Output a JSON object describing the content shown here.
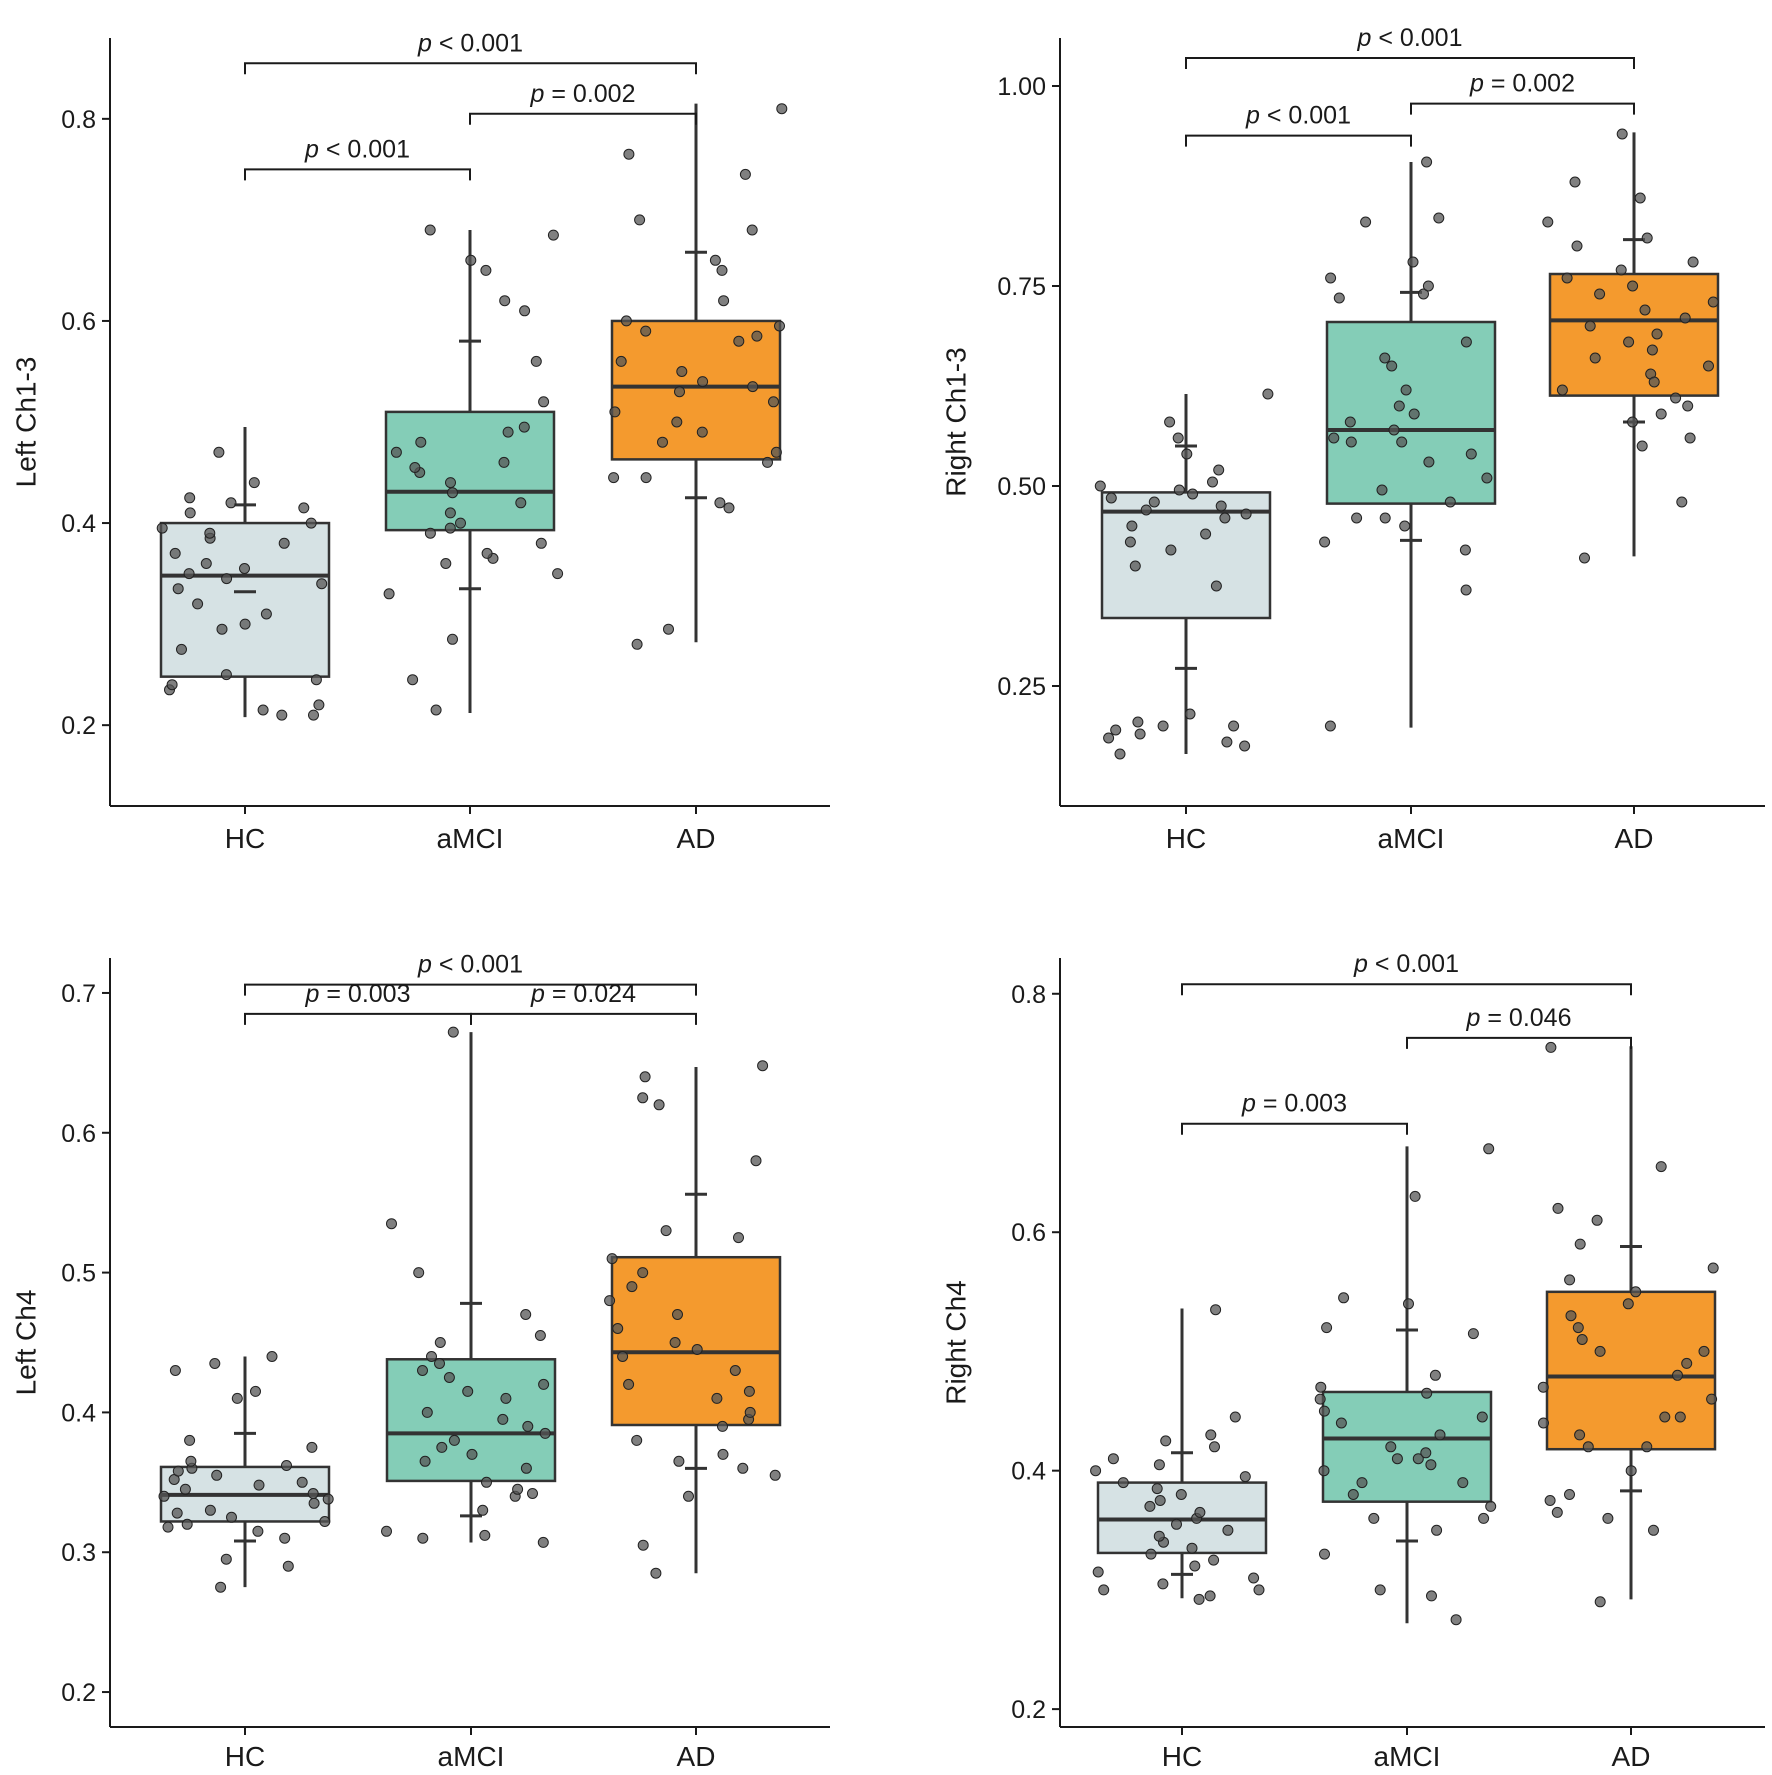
{
  "categories": [
    "HC",
    "aMCI",
    "AD"
  ],
  "colors": {
    "HC": "#d6e2e4",
    "aMCI": "#84cdb7",
    "AD": "#f49a2e"
  },
  "chart_data": [
    {
      "type": "box",
      "ylabel": "Left Ch1-3",
      "ylim": [
        0.12,
        0.88
      ],
      "yticks": [
        0.2,
        0.4,
        0.6,
        0.8
      ],
      "tick_labels": [
        "0.2",
        "0.4",
        "0.6",
        "0.8"
      ],
      "categories": [
        "HC",
        "aMCI",
        "AD"
      ],
      "boxes": [
        {
          "group": "HC",
          "q1": 0.248,
          "median": 0.348,
          "q3": 0.4,
          "lo": 0.208,
          "hi": 0.495,
          "err_lo": 0.332,
          "err_hi": 0.418
        },
        {
          "group": "aMCI",
          "q1": 0.393,
          "median": 0.431,
          "q3": 0.51,
          "lo": 0.212,
          "hi": 0.69,
          "err_lo": 0.335,
          "err_hi": 0.58
        },
        {
          "group": "AD",
          "q1": 0.463,
          "median": 0.535,
          "q3": 0.6,
          "lo": 0.282,
          "hi": 0.815,
          "err_lo": 0.425,
          "err_hi": 0.668
        }
      ],
      "points": [
        [
          0.21,
          0.22,
          0.235,
          0.25,
          0.245,
          0.275,
          0.295,
          0.3,
          0.31,
          0.32,
          0.335,
          0.34,
          0.345,
          0.35,
          0.355,
          0.36,
          0.37,
          0.38,
          0.385,
          0.39,
          0.395,
          0.4,
          0.41,
          0.415,
          0.42,
          0.425,
          0.44,
          0.47,
          0.21,
          0.215,
          0.24
        ],
        [
          0.245,
          0.285,
          0.33,
          0.35,
          0.36,
          0.365,
          0.37,
          0.38,
          0.39,
          0.395,
          0.4,
          0.41,
          0.42,
          0.43,
          0.44,
          0.45,
          0.455,
          0.46,
          0.47,
          0.48,
          0.49,
          0.495,
          0.52,
          0.56,
          0.61,
          0.62,
          0.65,
          0.66,
          0.685,
          0.69,
          0.215
        ],
        [
          0.28,
          0.295,
          0.42,
          0.415,
          0.445,
          0.46,
          0.47,
          0.48,
          0.49,
          0.5,
          0.51,
          0.52,
          0.53,
          0.535,
          0.54,
          0.55,
          0.56,
          0.58,
          0.585,
          0.59,
          0.595,
          0.6,
          0.62,
          0.65,
          0.66,
          0.69,
          0.7,
          0.745,
          0.765,
          0.81,
          0.445
        ]
      ],
      "comparisons": [
        {
          "from": "HC",
          "to": "AD",
          "p": "p < 0.001",
          "level": 0.855
        },
        {
          "from": "aMCI",
          "to": "AD",
          "p": "p = 0.002",
          "level": 0.805
        },
        {
          "from": "HC",
          "to": "aMCI",
          "p": "p < 0.001",
          "level": 0.75
        }
      ]
    },
    {
      "type": "box",
      "ylabel": "Right Ch1-3",
      "ylim": [
        0.1,
        1.06
      ],
      "yticks": [
        0.25,
        0.5,
        0.75,
        1.0
      ],
      "tick_labels": [
        "0.25",
        "0.50",
        "0.75",
        "1.00"
      ],
      "categories": [
        "HC",
        "aMCI",
        "AD"
      ],
      "boxes": [
        {
          "group": "HC",
          "q1": 0.335,
          "median": 0.468,
          "q3": 0.492,
          "lo": 0.165,
          "hi": 0.615,
          "err_lo": 0.272,
          "err_hi": 0.55
        },
        {
          "group": "aMCI",
          "q1": 0.478,
          "median": 0.57,
          "q3": 0.705,
          "lo": 0.198,
          "hi": 0.905,
          "err_lo": 0.432,
          "err_hi": 0.742
        },
        {
          "group": "AD",
          "q1": 0.613,
          "median": 0.707,
          "q3": 0.765,
          "lo": 0.412,
          "hi": 0.942,
          "err_lo": 0.58,
          "err_hi": 0.808
        }
      ],
      "points": [
        [
          0.165,
          0.175,
          0.18,
          0.185,
          0.19,
          0.195,
          0.2,
          0.205,
          0.215,
          0.375,
          0.4,
          0.42,
          0.43,
          0.44,
          0.45,
          0.46,
          0.465,
          0.47,
          0.475,
          0.48,
          0.485,
          0.49,
          0.495,
          0.5,
          0.505,
          0.52,
          0.54,
          0.56,
          0.58,
          0.615,
          0.2
        ],
        [
          0.2,
          0.37,
          0.42,
          0.43,
          0.45,
          0.46,
          0.48,
          0.495,
          0.51,
          0.53,
          0.54,
          0.555,
          0.56,
          0.57,
          0.58,
          0.59,
          0.6,
          0.62,
          0.65,
          0.66,
          0.68,
          0.735,
          0.74,
          0.75,
          0.76,
          0.78,
          0.83,
          0.835,
          0.905,
          0.555,
          0.46
        ],
        [
          0.41,
          0.48,
          0.55,
          0.56,
          0.58,
          0.59,
          0.6,
          0.61,
          0.62,
          0.64,
          0.65,
          0.66,
          0.67,
          0.68,
          0.69,
          0.7,
          0.71,
          0.72,
          0.73,
          0.74,
          0.75,
          0.76,
          0.77,
          0.78,
          0.8,
          0.81,
          0.83,
          0.86,
          0.88,
          0.94,
          0.63
        ]
      ],
      "comparisons": [
        {
          "from": "HC",
          "to": "AD",
          "p": "p < 0.001",
          "level": 1.035
        },
        {
          "from": "aMCI",
          "to": "AD",
          "p": "p = 0.002",
          "level": 0.978
        },
        {
          "from": "HC",
          "to": "aMCI",
          "p": "p < 0.001",
          "level": 0.938
        }
      ]
    },
    {
      "type": "box",
      "ylabel": "Left Ch4",
      "ylim": [
        0.175,
        0.725
      ],
      "yticks": [
        0.2,
        0.3,
        0.4,
        0.5,
        0.6,
        0.7
      ],
      "tick_labels": [
        "0.2",
        "0.3",
        "0.4",
        "0.5",
        "0.6",
        "0.7"
      ],
      "categories": [
        "HC",
        "aMCI",
        "AD"
      ],
      "boxes": [
        {
          "group": "HC",
          "q1": 0.322,
          "median": 0.341,
          "q3": 0.361,
          "lo": 0.275,
          "hi": 0.44,
          "err_lo": 0.308,
          "err_hi": 0.385
        },
        {
          "group": "aMCI",
          "q1": 0.351,
          "median": 0.385,
          "q3": 0.438,
          "lo": 0.307,
          "hi": 0.672,
          "err_lo": 0.326,
          "err_hi": 0.478
        },
        {
          "group": "AD",
          "q1": 0.391,
          "median": 0.443,
          "q3": 0.511,
          "lo": 0.285,
          "hi": 0.647,
          "err_lo": 0.36,
          "err_hi": 0.556
        }
      ],
      "points": [
        [
          0.275,
          0.29,
          0.295,
          0.31,
          0.315,
          0.318,
          0.32,
          0.322,
          0.325,
          0.328,
          0.33,
          0.335,
          0.338,
          0.34,
          0.342,
          0.345,
          0.348,
          0.35,
          0.352,
          0.355,
          0.358,
          0.36,
          0.362,
          0.365,
          0.375,
          0.38,
          0.41,
          0.415,
          0.43,
          0.435,
          0.44
        ],
        [
          0.307,
          0.31,
          0.312,
          0.315,
          0.33,
          0.34,
          0.342,
          0.345,
          0.35,
          0.36,
          0.365,
          0.37,
          0.375,
          0.38,
          0.385,
          0.39,
          0.395,
          0.4,
          0.41,
          0.415,
          0.42,
          0.425,
          0.43,
          0.435,
          0.44,
          0.45,
          0.455,
          0.47,
          0.5,
          0.535,
          0.672
        ],
        [
          0.285,
          0.305,
          0.34,
          0.355,
          0.36,
          0.365,
          0.37,
          0.38,
          0.39,
          0.395,
          0.4,
          0.41,
          0.415,
          0.42,
          0.43,
          0.44,
          0.445,
          0.45,
          0.46,
          0.47,
          0.48,
          0.49,
          0.5,
          0.51,
          0.525,
          0.53,
          0.58,
          0.62,
          0.64,
          0.648,
          0.625
        ]
      ],
      "comparisons": [
        {
          "from": "HC",
          "to": "AD",
          "p": "p < 0.001",
          "level": 0.706
        },
        {
          "from": "HC",
          "to": "aMCI",
          "p": "p = 0.003",
          "level": 0.685
        },
        {
          "from": "aMCI",
          "to": "AD",
          "p": "p = 0.024",
          "level": 0.685
        }
      ]
    },
    {
      "type": "box",
      "ylabel": "Right Ch4",
      "ylim": [
        0.185,
        0.83
      ],
      "yticks": [
        0.2,
        0.4,
        0.6,
        0.8
      ],
      "tick_labels": [
        "0.2",
        "0.4",
        "0.6",
        "0.8"
      ],
      "categories": [
        "HC",
        "aMCI",
        "AD"
      ],
      "boxes": [
        {
          "group": "HC",
          "q1": 0.331,
          "median": 0.359,
          "q3": 0.39,
          "lo": 0.293,
          "hi": 0.536,
          "err_lo": 0.313,
          "err_hi": 0.415
        },
        {
          "group": "aMCI",
          "q1": 0.374,
          "median": 0.427,
          "q3": 0.466,
          "lo": 0.272,
          "hi": 0.672,
          "err_lo": 0.341,
          "err_hi": 0.518
        },
        {
          "group": "AD",
          "q1": 0.418,
          "median": 0.479,
          "q3": 0.55,
          "lo": 0.292,
          "hi": 0.756,
          "err_lo": 0.383,
          "err_hi": 0.588
        }
      ],
      "points": [
        [
          0.292,
          0.295,
          0.3,
          0.305,
          0.31,
          0.315,
          0.32,
          0.325,
          0.33,
          0.335,
          0.34,
          0.345,
          0.35,
          0.355,
          0.36,
          0.365,
          0.37,
          0.375,
          0.38,
          0.385,
          0.39,
          0.395,
          0.4,
          0.405,
          0.41,
          0.42,
          0.425,
          0.43,
          0.445,
          0.535,
          0.3
        ],
        [
          0.275,
          0.295,
          0.3,
          0.33,
          0.35,
          0.36,
          0.37,
          0.38,
          0.39,
          0.4,
          0.405,
          0.41,
          0.415,
          0.42,
          0.43,
          0.44,
          0.445,
          0.45,
          0.46,
          0.465,
          0.47,
          0.48,
          0.515,
          0.52,
          0.54,
          0.545,
          0.63,
          0.67,
          0.39,
          0.36,
          0.41
        ],
        [
          0.29,
          0.35,
          0.36,
          0.365,
          0.375,
          0.38,
          0.4,
          0.42,
          0.43,
          0.44,
          0.445,
          0.46,
          0.47,
          0.48,
          0.49,
          0.5,
          0.51,
          0.52,
          0.53,
          0.54,
          0.55,
          0.56,
          0.57,
          0.59,
          0.61,
          0.62,
          0.655,
          0.755,
          0.42,
          0.5,
          0.445
        ]
      ],
      "comparisons": [
        {
          "from": "HC",
          "to": "AD",
          "p": "p < 0.001",
          "level": 0.808
        },
        {
          "from": "aMCI",
          "to": "AD",
          "p": "p = 0.046",
          "level": 0.763
        },
        {
          "from": "HC",
          "to": "aMCI",
          "p": "p = 0.003",
          "level": 0.691
        }
      ]
    }
  ]
}
